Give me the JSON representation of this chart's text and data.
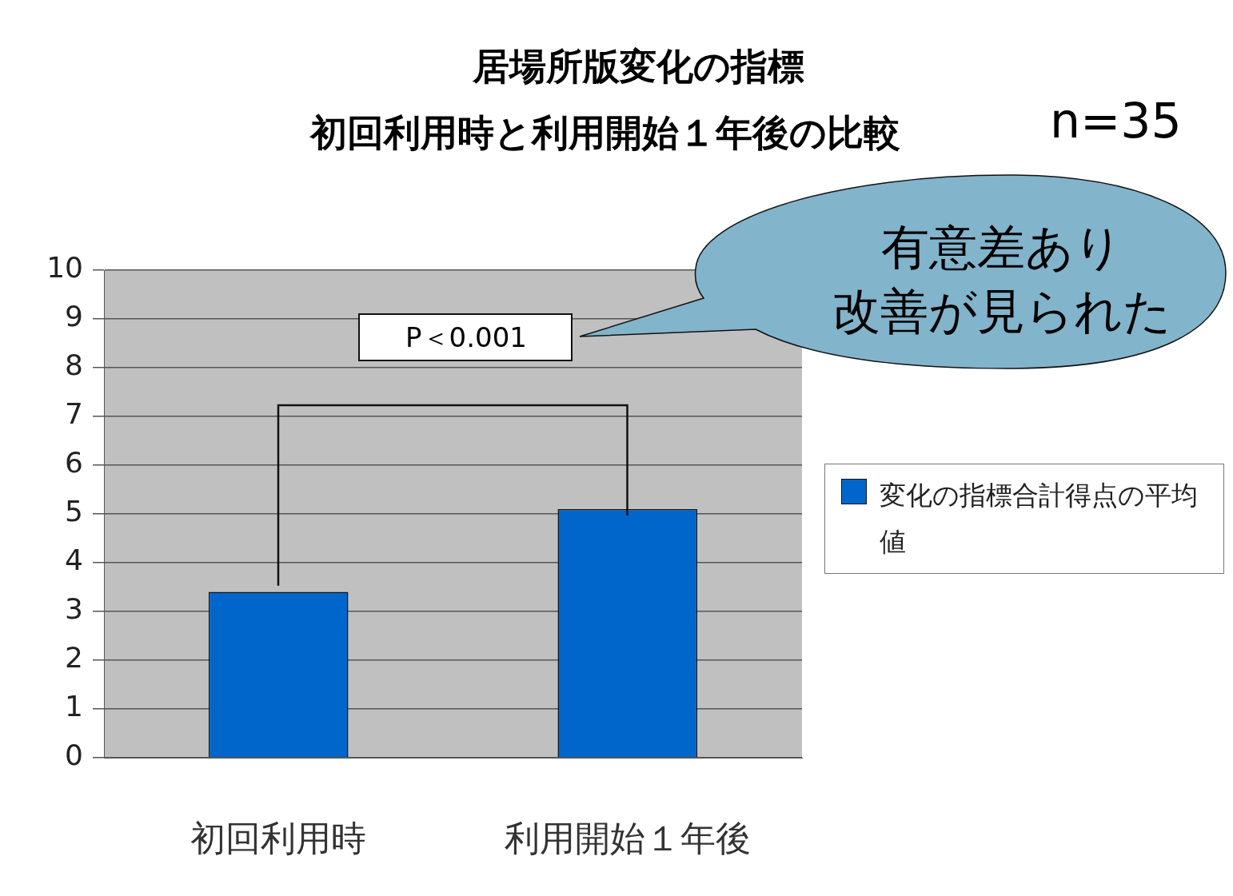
{
  "chart_data": {
    "type": "bar",
    "title": "居場所版変化の指標",
    "subtitle": "初回利用時と利用開始１年後の比較",
    "categories": [
      "初回利用時",
      "利用開始１年後"
    ],
    "series": [
      {
        "name": "変化の指標合計得点の平均値",
        "color": "#0066cc",
        "values": [
          3.4,
          5.1
        ]
      }
    ],
    "ylim": [
      0,
      10
    ],
    "yticks": [
      0,
      1,
      2,
      3,
      4,
      5,
      6,
      7,
      8,
      9,
      10
    ],
    "grid": "y",
    "legend": "right",
    "annotations": [
      "n=35",
      "P＜0.001",
      "有意差あり",
      "改善が見られた"
    ]
  }
}
